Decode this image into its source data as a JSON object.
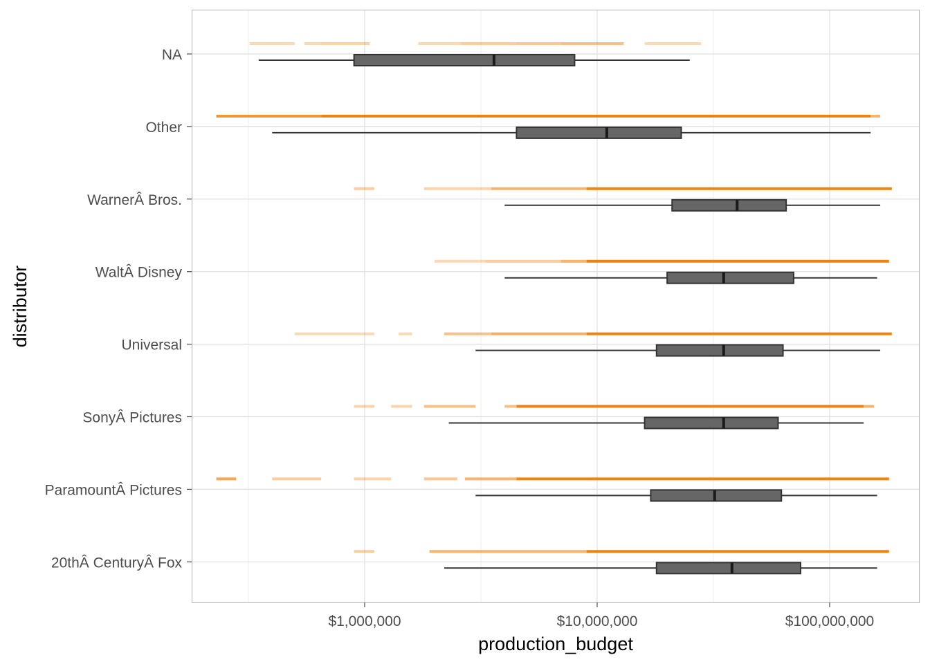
{
  "chart_data": {
    "type": "boxplot",
    "xlabel": "production_budget",
    "ylabel": "distributor",
    "x_scale": "log10",
    "xlim": [
      200000,
      200000000
    ],
    "x_ticks": [
      1000000,
      10000000,
      100000000
    ],
    "x_tick_labels": [
      "$1,000,000",
      "$10,000,000",
      "$100,000,000"
    ],
    "grid": true,
    "colors": {
      "box_fill": "#666666",
      "box_stroke": "#333333",
      "whisker": "#333333",
      "rug": "#f0820f",
      "grid": "#dedede",
      "panel_border": "#b3b3b3"
    },
    "categories": [
      "NA",
      "Other",
      "WarnerÂ Bros.",
      "WaltÂ Disney",
      "Universal",
      "SonyÂ Pictures",
      "ParamountÂ Pictures",
      "20thÂ CenturyÂ Fox"
    ],
    "series": [
      {
        "category": "NA",
        "min": 350000,
        "q1": 900000,
        "median": 3600000,
        "q3": 8000000,
        "max": 25000000,
        "rug": [
          [
            320000,
            500000,
            0.3
          ],
          [
            550000,
            650000,
            0.3
          ],
          [
            650000,
            1050000,
            0.35
          ],
          [
            1700000,
            2600000,
            0.3
          ],
          [
            2600000,
            4500000,
            0.4
          ],
          [
            4500000,
            7000000,
            0.45
          ],
          [
            7000000,
            13000000,
            0.5
          ],
          [
            16000000,
            28000000,
            0.3
          ]
        ]
      },
      {
        "category": "Other",
        "min": 400000,
        "q1": 4500000,
        "median": 11000000,
        "q3": 23000000,
        "max": 150000000,
        "rug": [
          [
            230000,
            650000,
            0.85
          ],
          [
            650000,
            150000000,
            1.0
          ],
          [
            150000000,
            165000000,
            0.6
          ]
        ]
      },
      {
        "category": "WarnerÂ Bros.",
        "min": 4000000,
        "q1": 21000000,
        "median": 40000000,
        "q3": 65000000,
        "max": 165000000,
        "rug": [
          [
            900000,
            1100000,
            0.4
          ],
          [
            1800000,
            3500000,
            0.35
          ],
          [
            3500000,
            9000000,
            0.6
          ],
          [
            9000000,
            185000000,
            1.0
          ]
        ]
      },
      {
        "category": "WaltÂ Disney",
        "min": 4000000,
        "q1": 20000000,
        "median": 35000000,
        "q3": 70000000,
        "max": 160000000,
        "rug": [
          [
            2000000,
            3300000,
            0.3
          ],
          [
            3300000,
            7000000,
            0.4
          ],
          [
            7000000,
            9000000,
            0.6
          ],
          [
            9000000,
            180000000,
            1.0
          ]
        ]
      },
      {
        "category": "Universal",
        "min": 3000000,
        "q1": 18000000,
        "median": 35000000,
        "q3": 63000000,
        "max": 165000000,
        "rug": [
          [
            500000,
            1100000,
            0.3
          ],
          [
            1400000,
            1600000,
            0.3
          ],
          [
            2200000,
            3500000,
            0.5
          ],
          [
            3500000,
            9000000,
            0.65
          ],
          [
            9000000,
            185000000,
            1.0
          ]
        ]
      },
      {
        "category": "SonyÂ Pictures",
        "min": 2300000,
        "q1": 16000000,
        "median": 35000000,
        "q3": 60000000,
        "max": 140000000,
        "rug": [
          [
            900000,
            1100000,
            0.35
          ],
          [
            1300000,
            1600000,
            0.35
          ],
          [
            1800000,
            3000000,
            0.5
          ],
          [
            4000000,
            4500000,
            0.5
          ],
          [
            4500000,
            140000000,
            1.0
          ],
          [
            140000000,
            155000000,
            0.6
          ]
        ]
      },
      {
        "category": "ParamountÂ Pictures",
        "min": 3000000,
        "q1": 17000000,
        "median": 32000000,
        "q3": 62000000,
        "max": 160000000,
        "rug": [
          [
            230000,
            280000,
            0.7
          ],
          [
            400000,
            650000,
            0.4
          ],
          [
            900000,
            1300000,
            0.35
          ],
          [
            1800000,
            2500000,
            0.45
          ],
          [
            2700000,
            4500000,
            0.6
          ],
          [
            4500000,
            180000000,
            1.0
          ]
        ]
      },
      {
        "category": "20thÂ CenturyÂ Fox",
        "min": 2200000,
        "q1": 18000000,
        "median": 38000000,
        "q3": 75000000,
        "max": 160000000,
        "rug": [
          [
            900000,
            1100000,
            0.4
          ],
          [
            1900000,
            9000000,
            0.6
          ],
          [
            9000000,
            180000000,
            1.0
          ]
        ]
      }
    ]
  }
}
